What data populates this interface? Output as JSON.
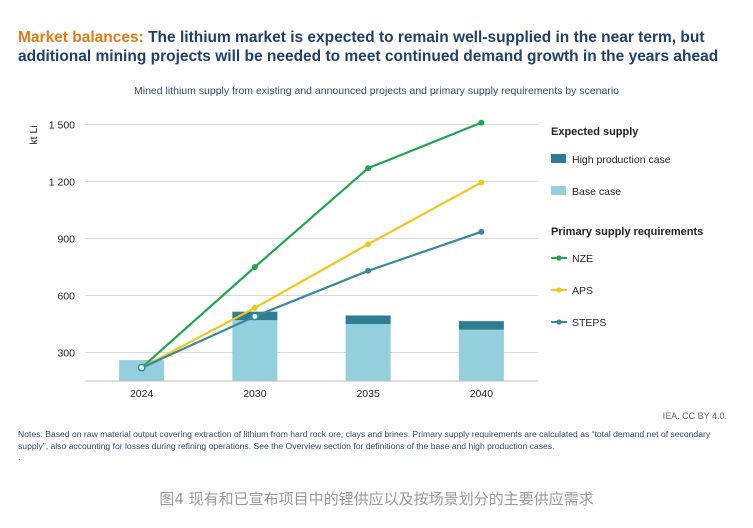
{
  "headline": {
    "kicker": "Market balances:",
    "text": " The lithium market is expected to remain well-supplied in the near term, but additional mining projects will be needed to meet continued demand growth in the years ahead"
  },
  "credit": "IEA. CC BY 4.0.",
  "notes": "Notes: Based on raw material output covering extraction of lithium from hard rock ore, clays and brines. Primary supply requirements are calculated as “total demand net of secondary supply”, also accounting for losses during refining operations. See the Overview section for definitions of the base and high production cases.",
  "notes_dot": ".",
  "caption": "图4 现有和已宣布项目中的锂供应以及按场景划分的主要供应需求",
  "chart_data": {
    "type": "bar",
    "title": "Mined lithium supply from existing and announced projects and primary supply requirements by scenario",
    "ylabel": "kt Li",
    "ylim": [
      150,
      1550
    ],
    "yticks": [
      300,
      600,
      900,
      1200,
      1500
    ],
    "ytick_labels": [
      "300",
      "600",
      "900",
      "1 200",
      "1 500"
    ],
    "categories": [
      "2024",
      "2030",
      "2035",
      "2040"
    ],
    "legend_headers": {
      "bars": "Expected supply",
      "lines": "Primary supply requirements"
    },
    "legend_position": "right",
    "bar_series": [
      {
        "name": "Base case",
        "color": "#93cfdd",
        "values": [
          260,
          470,
          450,
          420
        ]
      },
      {
        "name": "High production case",
        "color": "#2e7d92",
        "values": [
          0,
          45,
          45,
          45
        ]
      }
    ],
    "line_series": [
      {
        "name": "NZE",
        "color": "#1ea84e",
        "values": [
          220,
          750,
          1270,
          1510
        ]
      },
      {
        "name": "APS",
        "color": "#f5c518",
        "values": [
          220,
          535,
          870,
          1195
        ]
      },
      {
        "name": "STEPS",
        "color": "#3a88a0",
        "values": [
          220,
          490,
          730,
          935
        ]
      }
    ],
    "colors": {
      "axis": "#bfbfbf",
      "grid": "#d9d9d9",
      "tick_text": "#222222"
    }
  }
}
